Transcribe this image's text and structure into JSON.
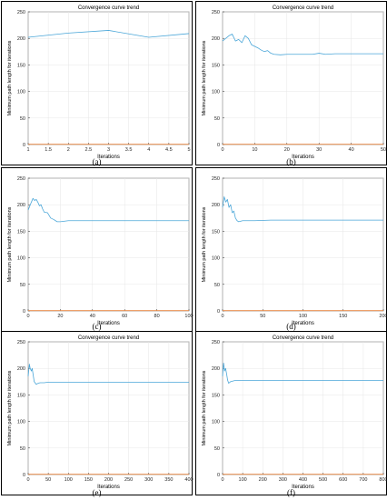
{
  "chart_data": [
    {
      "type": "line",
      "title": "Convergence curve trend",
      "xlabel": "Iterations",
      "ylabel": "Minimum path length for iterations",
      "caption": "(a)",
      "xlim": [
        1,
        5
      ],
      "ylim": [
        0,
        250
      ],
      "xticks": [
        1,
        1.5,
        2,
        2.5,
        3,
        3.5,
        4,
        4.5,
        5
      ],
      "yticks": [
        0,
        50,
        100,
        150,
        200,
        250
      ],
      "grid": true,
      "series": [
        {
          "color": "#4aa6d8",
          "x": [
            1,
            2,
            3,
            4,
            5
          ],
          "y": [
            202,
            210,
            215,
            202,
            209
          ]
        },
        {
          "color": "#e8823a",
          "x": [
            1,
            5
          ],
          "y": [
            0.5,
            0.5
          ]
        }
      ]
    },
    {
      "type": "line",
      "title": "Convergence curve trend",
      "xlabel": "Iterations",
      "ylabel": "Minimum path length for iterations",
      "caption": "(b)",
      "xlim": [
        0,
        50
      ],
      "ylim": [
        0,
        250
      ],
      "xticks": [
        0,
        10,
        20,
        30,
        40,
        50
      ],
      "yticks": [
        0,
        50,
        100,
        150,
        200,
        250
      ],
      "grid": true,
      "series": [
        {
          "color": "#4aa6d8",
          "x": [
            0,
            1,
            2,
            3,
            4,
            5,
            6,
            7,
            8,
            9,
            10,
            11,
            12,
            13,
            14,
            15,
            16,
            18,
            20,
            22,
            25,
            28,
            30,
            32,
            35,
            40,
            45,
            50
          ],
          "y": [
            195,
            200,
            205,
            208,
            195,
            198,
            192,
            205,
            200,
            188,
            185,
            182,
            178,
            175,
            177,
            172,
            170,
            169,
            170,
            170,
            170,
            170,
            172,
            170,
            171,
            171,
            171,
            171
          ]
        },
        {
          "color": "#e8823a",
          "x": [
            0,
            50
          ],
          "y": [
            0.5,
            0.5
          ]
        }
      ]
    },
    {
      "type": "line",
      "title": "",
      "xlabel": "Iterations",
      "ylabel": "Minimum path length for iterations",
      "caption": "(c)",
      "xlim": [
        0,
        100
      ],
      "ylim": [
        0,
        250
      ],
      "xticks": [
        0,
        20,
        40,
        60,
        80,
        100
      ],
      "yticks": [
        0,
        50,
        100,
        150,
        200,
        250
      ],
      "grid": true,
      "series": [
        {
          "color": "#4aa6d8",
          "x": [
            0,
            2,
            3,
            4,
            5,
            6,
            7,
            8,
            9,
            10,
            12,
            14,
            16,
            18,
            20,
            25,
            30,
            40,
            60,
            80,
            100
          ],
          "y": [
            190,
            205,
            212,
            208,
            210,
            205,
            198,
            200,
            192,
            186,
            185,
            175,
            172,
            168,
            168,
            170,
            170,
            170,
            170,
            170,
            170
          ]
        },
        {
          "color": "#e8823a",
          "x": [
            0,
            100
          ],
          "y": [
            0.5,
            0.5
          ]
        }
      ]
    },
    {
      "type": "line",
      "title": "",
      "xlabel": "Iterations",
      "ylabel": "Minimum path length for iterations",
      "caption": "(d)",
      "xlim": [
        0,
        200
      ],
      "ylim": [
        0,
        250
      ],
      "xticks": [
        0,
        50,
        100,
        150,
        200
      ],
      "yticks": [
        0,
        50,
        100,
        150,
        200,
        250
      ],
      "grid": true,
      "series": [
        {
          "color": "#4aa6d8",
          "x": [
            0,
            2,
            4,
            6,
            8,
            10,
            12,
            14,
            16,
            18,
            20,
            25,
            30,
            40,
            60,
            100,
            150,
            200
          ],
          "y": [
            195,
            215,
            205,
            210,
            195,
            200,
            185,
            188,
            175,
            170,
            168,
            170,
            170,
            170,
            171,
            171,
            171,
            171
          ]
        },
        {
          "color": "#e8823a",
          "x": [
            0,
            200
          ],
          "y": [
            0.5,
            0.5
          ]
        }
      ]
    },
    {
      "type": "line",
      "title": "Convergence curve trend",
      "xlabel": "Iterations",
      "ylabel": "Minimum path length for iterations",
      "caption": "(e)",
      "xlim": [
        0,
        400
      ],
      "ylim": [
        0,
        250
      ],
      "xticks": [
        0,
        50,
        100,
        150,
        200,
        250,
        300,
        350,
        400
      ],
      "yticks": [
        0,
        50,
        100,
        150,
        200,
        250
      ],
      "grid": true,
      "series": [
        {
          "color": "#4aa6d8",
          "x": [
            0,
            3,
            5,
            8,
            10,
            12,
            15,
            20,
            25,
            30,
            40,
            50,
            100,
            200,
            300,
            400
          ],
          "y": [
            185,
            208,
            200,
            195,
            200,
            190,
            175,
            170,
            172,
            173,
            173,
            174,
            174,
            174,
            174,
            174
          ]
        },
        {
          "color": "#e8823a",
          "x": [
            0,
            400
          ],
          "y": [
            0.5,
            0.5
          ]
        }
      ]
    },
    {
      "type": "line",
      "title": "Convergence curve trend",
      "xlabel": "Iterations",
      "ylabel": "Minimum path length for iterations",
      "caption": "(f)",
      "xlim": [
        0,
        800
      ],
      "ylim": [
        0,
        250
      ],
      "xticks": [
        0,
        100,
        200,
        300,
        400,
        500,
        600,
        700,
        800
      ],
      "yticks": [
        0,
        50,
        100,
        150,
        200,
        250
      ],
      "grid": true,
      "series": [
        {
          "color": "#4aa6d8",
          "x": [
            0,
            5,
            10,
            15,
            20,
            25,
            30,
            40,
            50,
            60,
            100,
            200,
            400,
            600,
            800
          ],
          "y": [
            185,
            210,
            195,
            200,
            190,
            178,
            172,
            175,
            176,
            177,
            177,
            177,
            177,
            177,
            177
          ]
        },
        {
          "color": "#e8823a",
          "x": [
            0,
            800
          ],
          "y": [
            0.5,
            0.5
          ]
        }
      ]
    }
  ]
}
